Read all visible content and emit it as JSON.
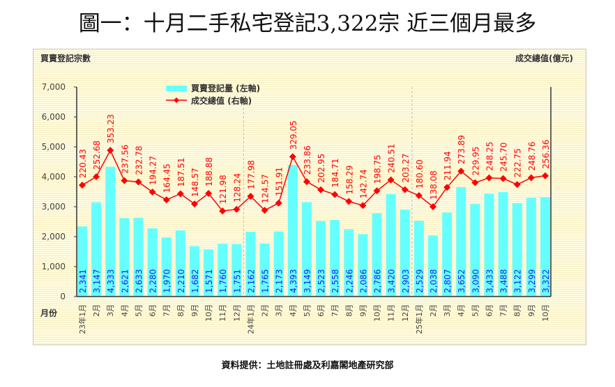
{
  "title": "圖一：十月二手私宅登記3,322宗 近三個月最多",
  "source": "資料提供：土地註冊處及利嘉閣地產研究部",
  "chart_data": {
    "type": "bar+line",
    "ylabel_left": "買賣登記宗數",
    "ylabel_right": "成交總值(億元)",
    "xlabel": "月份",
    "ylim": [
      0,
      7000
    ],
    "yticks": [
      "0",
      "1,000",
      "2,000",
      "3,000",
      "4,000",
      "5,000",
      "6,000",
      "7,000"
    ],
    "grid": false,
    "legend_placement": "top-left",
    "categories": [
      "23年1月",
      "2月",
      "3月",
      "4月",
      "5月",
      "6月",
      "7月",
      "8月",
      "9月",
      "10月",
      "11月",
      "12月",
      "24年1月",
      "2月",
      "3月",
      "4月",
      "5月",
      "6月",
      "7月",
      "8月",
      "9月",
      "10月",
      "11月",
      "12月",
      "25年1月",
      "2月",
      "3月",
      "4月",
      "5月",
      "6月",
      "7月",
      "8月",
      "9月",
      "10月"
    ],
    "series": [
      {
        "name": "買賣登記量 (左軸)",
        "type": "bar",
        "color": "#66ffff",
        "label_color": "#2222ee",
        "values": [
          2341,
          3147,
          4333,
          2621,
          2633,
          2280,
          1970,
          2210,
          1682,
          1571,
          1760,
          1751,
          2162,
          1765,
          2173,
          4393,
          3149,
          2523,
          2558,
          2246,
          2086,
          2786,
          3420,
          2903,
          2529,
          2038,
          2807,
          3652,
          3090,
          3433,
          3488,
          3122,
          3299,
          3322
        ]
      },
      {
        "name": "成交總值 (右軸)",
        "type": "line",
        "color": "#ff0000",
        "values": [
          220.43,
          252.68,
          353.23,
          237.56,
          232.78,
          194.27,
          164.45,
          187.51,
          148.57,
          188.88,
          121.98,
          128.24,
          177.98,
          124.57,
          151.91,
          329.05,
          233.86,
          202.95,
          184.71,
          158.29,
          142.74,
          198.75,
          240.51,
          203.27,
          180.6,
          138.08,
          211.94,
          273.89,
          229.95,
          248.25,
          245.7,
          222.75,
          248.76,
          256.36
        ]
      }
    ]
  }
}
